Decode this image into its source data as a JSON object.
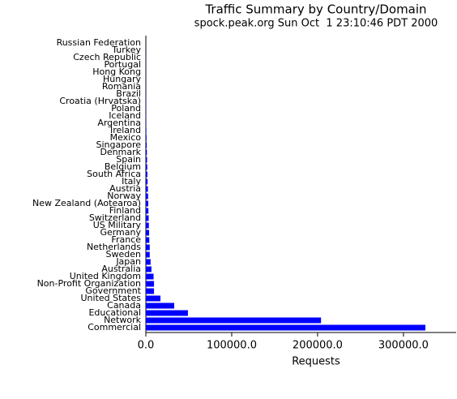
{
  "chart_data": {
    "type": "hbar",
    "title": "Traffic Summary by Country/Domain",
    "subtitle": "spock.peak.org Sun Oct  1 23:10:46 PDT 2000",
    "x_label": "Requests",
    "categories": [
      "Russian Federation",
      "Turkey",
      "Czech Republic",
      "Portugal",
      "Hong Kong",
      "Hungary",
      "Romania",
      "Brazil",
      "Croatia (Hrvatska)",
      "Poland",
      "Iceland",
      "Argentina",
      "Ireland",
      "Mexico",
      "Singapore",
      "Denmark",
      "Spain",
      "Belgium",
      "South Africa",
      "Italy",
      "Austria",
      "Norway",
      "New Zealand (Aotearoa)",
      "Finland",
      "Switzerland",
      "US Military",
      "Germany",
      "France",
      "Netherlands",
      "Sweden",
      "Japan",
      "Australia",
      "United Kingdom",
      "Non-Profit Organization",
      "Government",
      "United States",
      "Canada",
      "Educational",
      "Network",
      "Commercial"
    ],
    "values": [
      60,
      80,
      100,
      120,
      150,
      180,
      200,
      250,
      300,
      350,
      400,
      500,
      600,
      800,
      1000,
      1200,
      1400,
      1600,
      1800,
      2000,
      2400,
      2600,
      2800,
      3000,
      3300,
      3500,
      3800,
      4000,
      4500,
      4500,
      5500,
      6500,
      9000,
      9500,
      9500,
      17000,
      33000,
      49000,
      204000,
      325500
    ],
    "color": "#0000ff",
    "xlim": [
      0,
      360000
    ],
    "xticks": [
      {
        "value": 0,
        "label": "0.0"
      },
      {
        "value": 100000,
        "label": "100000.0"
      },
      {
        "value": 200000,
        "label": "200000.0"
      },
      {
        "value": 300000,
        "label": "300000.0"
      }
    ]
  }
}
